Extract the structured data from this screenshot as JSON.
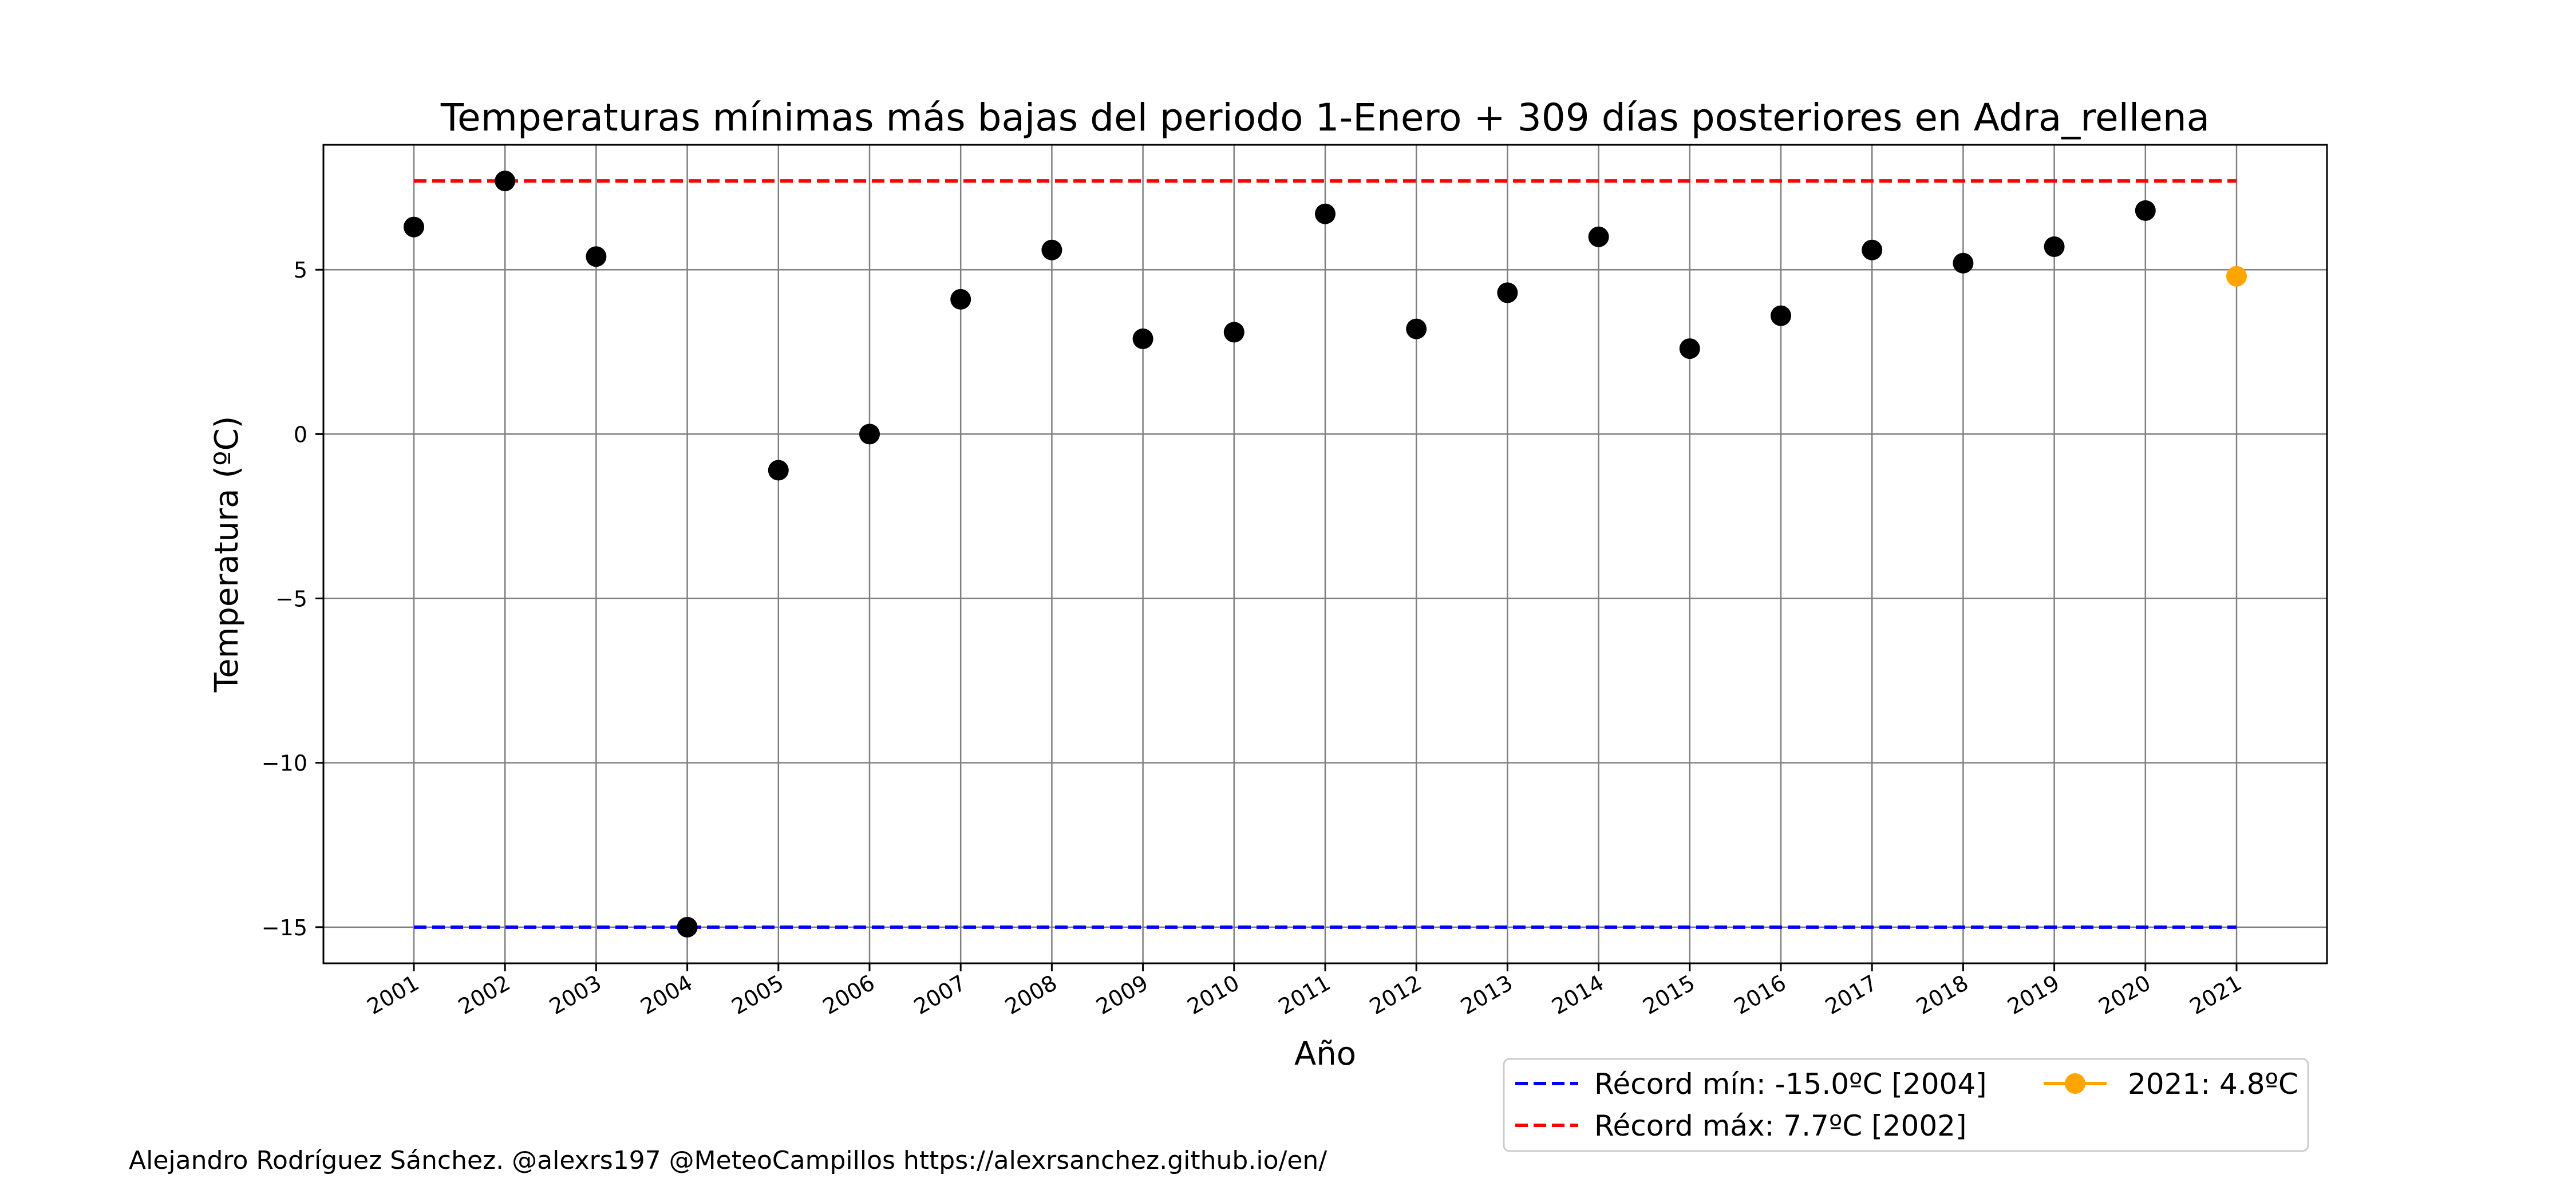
{
  "chart_data": {
    "type": "scatter",
    "title": "Temperaturas mínimas más bajas del periodo 1-Enero + 309 días posteriores en Adra_rellena",
    "xlabel": "Año",
    "ylabel": "Temperatura (ºC)",
    "ylim": [
      -16.1,
      8.8
    ],
    "yticks": [
      -15,
      -10,
      -5,
      0,
      5
    ],
    "ytick_labels": [
      "−15",
      "−10",
      "−5",
      "0",
      "5"
    ],
    "grid": true,
    "legend_position": "below-right",
    "years": [
      "2001",
      "2002",
      "2003",
      "2004",
      "2005",
      "2006",
      "2007",
      "2008",
      "2009",
      "2010",
      "2011",
      "2012",
      "2013",
      "2014",
      "2015",
      "2016",
      "2017",
      "2018",
      "2019",
      "2020",
      "2021"
    ],
    "series": [
      {
        "color": "#000000",
        "points": [
          {
            "x": "2001",
            "y": 6.3
          },
          {
            "x": "2002",
            "y": 7.7
          },
          {
            "x": "2003",
            "y": 5.4
          },
          {
            "x": "2004",
            "y": -15.0
          },
          {
            "x": "2005",
            "y": -1.1
          },
          {
            "x": "2006",
            "y": 0.0
          },
          {
            "x": "2007",
            "y": 4.1
          },
          {
            "x": "2008",
            "y": 5.6
          },
          {
            "x": "2009",
            "y": 2.9
          },
          {
            "x": "2010",
            "y": 3.1
          },
          {
            "x": "2011",
            "y": 6.7
          },
          {
            "x": "2012",
            "y": 3.2
          },
          {
            "x": "2013",
            "y": 4.3
          },
          {
            "x": "2014",
            "y": 6.0
          },
          {
            "x": "2015",
            "y": 2.6
          },
          {
            "x": "2016",
            "y": 3.6
          },
          {
            "x": "2017",
            "y": 5.6
          },
          {
            "x": "2018",
            "y": 5.2
          },
          {
            "x": "2019",
            "y": 5.7
          },
          {
            "x": "2020",
            "y": 6.8
          }
        ]
      },
      {
        "name": "2021: 4.8ºC",
        "color": "#ffa500",
        "points": [
          {
            "x": "2021",
            "y": 4.8
          }
        ]
      }
    ],
    "reference_lines": [
      {
        "name": "Récord mín: -15.0ºC [2004]",
        "y": -15.0,
        "color": "#0000ff",
        "style": "dashed"
      },
      {
        "name": "Récord máx: 7.7ºC [2002]",
        "y": 7.7,
        "color": "#ff0000",
        "style": "dashed"
      }
    ]
  },
  "footer": {
    "credit": "Alejandro Rodríguez Sánchez. @alexrs197 @MeteoCampillos   https://alexrsanchez.github.io/en/"
  }
}
